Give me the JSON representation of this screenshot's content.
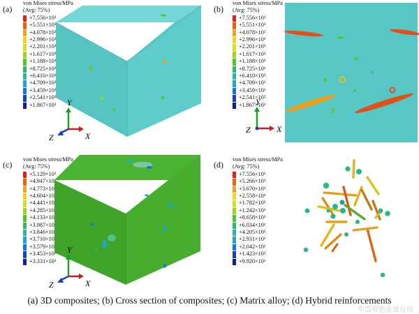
{
  "panels": [
    {
      "label": "(a)",
      "legend_title": [
        "von Mises stress/MPa",
        "(Avg: 75%)"
      ],
      "legend_values": [
        "+7.556×10³",
        "+5.551×10³",
        "+4.078×10³",
        "+2.996×10³",
        "+2.201×10³",
        "+1.617×10³",
        "+1.188×10³",
        "+8.725×10²",
        "+6.410×10²",
        "+4.709×10²",
        "+3.459×10²",
        "+2.541×10²",
        "+1.867×10²"
      ],
      "axes": {
        "y": "Y",
        "x": "X",
        "z": "Z"
      }
    },
    {
      "label": "(b)",
      "legend_title": [
        "von Mises stress/MPa",
        "(Avg: 75%)"
      ],
      "legend_values": [
        "+7.556×10³",
        "+5.551×10³",
        "+4.078×10³",
        "+2.996×10³",
        "+2.201×10³",
        "+1.617×10³",
        "+1.188×10³",
        "+8.725×10²",
        "+6.410×10²",
        "+4.709×10²",
        "+3.459×10²",
        "+2.541×10²",
        "+1.867×10²"
      ],
      "axes": {
        "y": "Y",
        "x": "X",
        "z": "Z"
      }
    },
    {
      "label": "(c)",
      "legend_title": [
        "von Mises stress/MPa",
        "(Avg: 75%)"
      ],
      "legend_values": [
        "+5.129×10²",
        "+4.947×10²",
        "+4.773×10²",
        "+4.604×10²",
        "+4.441×10²",
        "+4.285×10²",
        "+4.133×10²",
        "+3.987×10²",
        "+3.846×10²",
        "+3.710×10²",
        "+3.579×10²",
        "+3.453×10²",
        "+3.331×10²"
      ],
      "axes": {
        "y": "Y",
        "x": "X",
        "z": "Z"
      }
    },
    {
      "label": "(d)",
      "legend_title": [
        "von Mises stress/MPa",
        "(Avg: 75%)"
      ],
      "legend_values": [
        "+7.556×10³",
        "+5.266×10³",
        "+3.670×10³",
        "+2.558×10³",
        "+1.782×10³",
        "+1.242×10³",
        "+8.658×10²",
        "+6.034×10²",
        "+4.205×10²",
        "+2.931×10²",
        "+2.042×10²",
        "+1.423×10²",
        "+9.920×10¹"
      ],
      "axes": {
        "y": "Y",
        "x": "X",
        "z": "Z"
      }
    }
  ],
  "legend_colors": [
    "#e41f13",
    "#f2600f",
    "#f8a01c",
    "#f7d11d",
    "#d6e21f",
    "#9cd71e",
    "#56c625",
    "#2dbd5e",
    "#29b79f",
    "#22a4d4",
    "#1b72d8",
    "#1542c4",
    "#0f1c9e"
  ],
  "caption": "(a) 3D composites; (b) Cross section of composites; (c) Matrix alloy; (d) Hybrid reinforcements",
  "watermark": "中国有色金属在线"
}
